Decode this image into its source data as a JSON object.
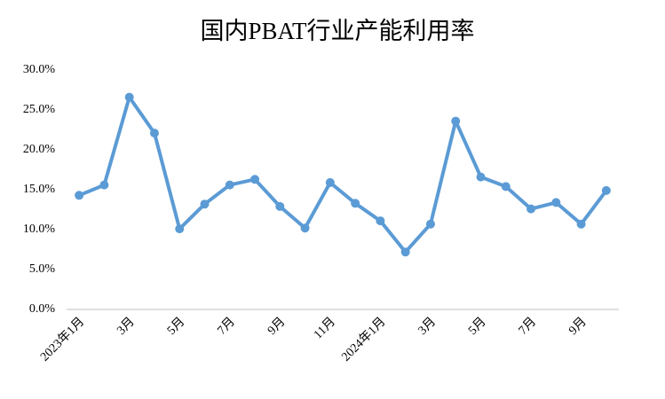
{
  "chart_data": {
    "type": "line",
    "title": "国内PBAT行业产能利用率",
    "categories": [
      "2023年1月",
      null,
      "3月",
      null,
      "5月",
      null,
      "7月",
      null,
      "9月",
      null,
      "11月",
      null,
      "2024年1月",
      null,
      "3月",
      null,
      "5月",
      null,
      "7月",
      null,
      "9月",
      null
    ],
    "series": [
      {
        "name": "产能利用率",
        "color": "#5b9bd5",
        "values": [
          14.3,
          15.6,
          26.6,
          22.1,
          10.1,
          13.2,
          15.6,
          16.3,
          12.9,
          10.2,
          15.9,
          13.3,
          11.1,
          7.2,
          10.7,
          23.6,
          16.6,
          15.4,
          12.6,
          13.4,
          10.7,
          14.9
        ]
      }
    ],
    "ylim": [
      0,
      30
    ],
    "yticks": [
      {
        "value": 0,
        "label": "0.0%"
      },
      {
        "value": 5,
        "label": "5.0%"
      },
      {
        "value": 10,
        "label": "10.0%"
      },
      {
        "value": 15,
        "label": "15.0%"
      },
      {
        "value": 20,
        "label": "20.0%"
      },
      {
        "value": 25,
        "label": "25.0%"
      },
      {
        "value": 30,
        "label": "30.0%"
      }
    ],
    "grid": false
  }
}
